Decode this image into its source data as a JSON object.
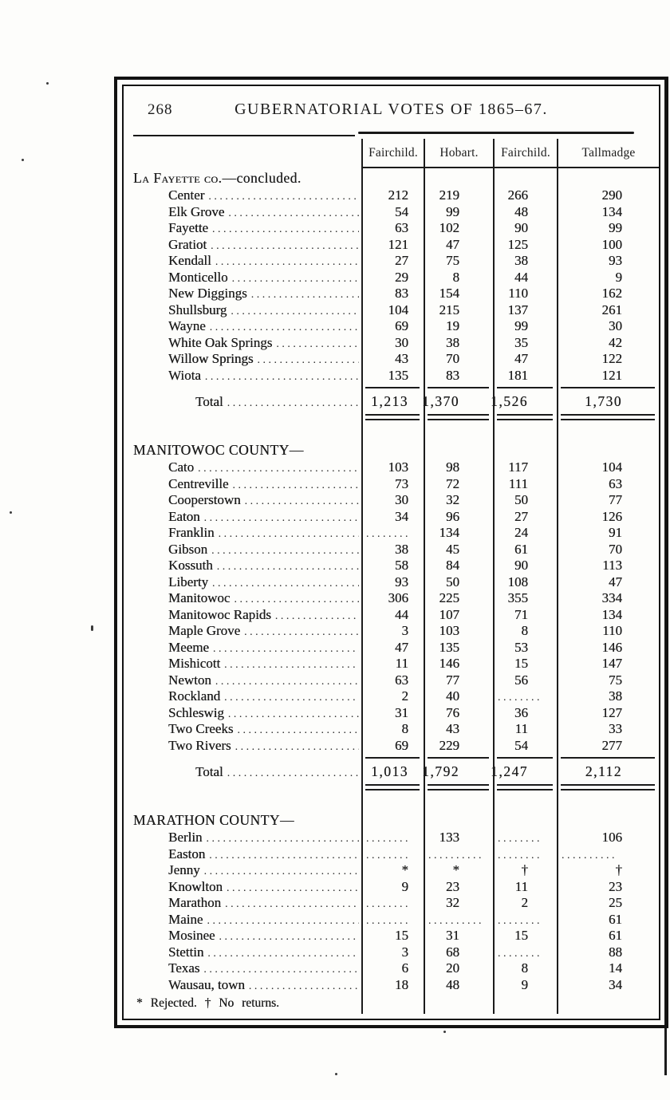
{
  "page_number": "268",
  "title": "GUBERNATORIAL VOTES OF 1865–67.",
  "columns": [
    "Fairchild.",
    "Hobart.",
    "Fairchild.",
    "Tallmadge"
  ],
  "sections": [
    {
      "heading": "La Fayette co.",
      "heading_suffix": "—concluded.",
      "rows": [
        {
          "label": "Center",
          "values": [
            "212",
            "219",
            "266",
            "290"
          ]
        },
        {
          "label": "Elk Grove",
          "values": [
            "54",
            "99",
            "48",
            "134"
          ]
        },
        {
          "label": "Fayette",
          "values": [
            "63",
            "102",
            "90",
            "99"
          ]
        },
        {
          "label": "Gratiot",
          "values": [
            "121",
            "47",
            "125",
            "100"
          ]
        },
        {
          "label": "Kendall",
          "values": [
            "27",
            "75",
            "38",
            "93"
          ]
        },
        {
          "label": "Monticello",
          "values": [
            "29",
            "8",
            "44",
            "9"
          ]
        },
        {
          "label": "New Diggings",
          "values": [
            "83",
            "154",
            "110",
            "162"
          ]
        },
        {
          "label": "Shullsburg",
          "values": [
            "104",
            "215",
            "137",
            "261"
          ]
        },
        {
          "label": "Wayne",
          "values": [
            "69",
            "19",
            "99",
            "30"
          ]
        },
        {
          "label": "White Oak Springs",
          "values": [
            "30",
            "38",
            "35",
            "42"
          ]
        },
        {
          "label": "Willow Springs",
          "values": [
            "43",
            "70",
            "47",
            "122"
          ]
        },
        {
          "label": "Wiota",
          "values": [
            "135",
            "83",
            "181",
            "121"
          ]
        }
      ],
      "total": {
        "label": "Total",
        "values": [
          "1,213",
          "1,370",
          "1,526",
          "1,730"
        ]
      }
    },
    {
      "heading": "MANITOWOC COUNTY—",
      "heading_suffix": "",
      "rows": [
        {
          "label": "Cato",
          "values": [
            "103",
            "98",
            "117",
            "104"
          ]
        },
        {
          "label": "Centreville",
          "values": [
            "73",
            "72",
            "111",
            "63"
          ]
        },
        {
          "label": "Cooperstown",
          "values": [
            "30",
            "32",
            "50",
            "77"
          ]
        },
        {
          "label": "Eaton",
          "values": [
            "34",
            "96",
            "27",
            "126"
          ]
        },
        {
          "label": "Franklin",
          "values": [
            "........",
            "134",
            "24",
            "91"
          ]
        },
        {
          "label": "Gibson",
          "values": [
            "38",
            "45",
            "61",
            "70"
          ]
        },
        {
          "label": "Kossuth",
          "values": [
            "58",
            "84",
            "90",
            "113"
          ]
        },
        {
          "label": "Liberty",
          "values": [
            "93",
            "50",
            "108",
            "47"
          ]
        },
        {
          "label": "Manitowoc",
          "values": [
            "306",
            "225",
            "355",
            "334"
          ]
        },
        {
          "label": "Manitowoc Rapids",
          "values": [
            "44",
            "107",
            "71",
            "134"
          ]
        },
        {
          "label": "Maple Grove",
          "values": [
            "3",
            "103",
            "8",
            "110"
          ]
        },
        {
          "label": "Meeme",
          "values": [
            "47",
            "135",
            "53",
            "146"
          ]
        },
        {
          "label": "Mishicott",
          "values": [
            "11",
            "146",
            "15",
            "147"
          ]
        },
        {
          "label": "Newton",
          "values": [
            "63",
            "77",
            "56",
            "75"
          ]
        },
        {
          "label": "Rockland",
          "values": [
            "2",
            "40",
            "........",
            "38"
          ]
        },
        {
          "label": "Schleswig",
          "values": [
            "31",
            "76",
            "36",
            "127"
          ]
        },
        {
          "label": "Two Creeks",
          "values": [
            "8",
            "43",
            "11",
            "33"
          ]
        },
        {
          "label": "Two Rivers",
          "values": [
            "69",
            "229",
            "54",
            "277"
          ]
        }
      ],
      "total": {
        "label": "Total",
        "values": [
          "1,013",
          "1,792",
          "1,247",
          "2,112"
        ]
      }
    },
    {
      "heading": "MARATHON COUNTY—",
      "heading_suffix": "",
      "rows": [
        {
          "label": "Berlin",
          "values": [
            "........",
            "133",
            "........",
            "106"
          ]
        },
        {
          "label": "Easton",
          "values": [
            "........",
            "..........",
            "........",
            ".........."
          ]
        },
        {
          "label": "Jenny",
          "values": [
            "*",
            "*",
            "†",
            "†"
          ]
        },
        {
          "label": "Knowlton",
          "values": [
            "9",
            "23",
            "11",
            "23"
          ]
        },
        {
          "label": "Marathon",
          "values": [
            "........",
            "32",
            "2",
            "25"
          ]
        },
        {
          "label": "Maine",
          "values": [
            "........",
            "..........",
            "........",
            "61"
          ]
        },
        {
          "label": "Mosinee",
          "values": [
            "15",
            "31",
            "15",
            "61"
          ]
        },
        {
          "label": "Stettin",
          "values": [
            "3",
            "68",
            "........",
            "88"
          ]
        },
        {
          "label": "Texas",
          "values": [
            "6",
            "20",
            "8",
            "14"
          ]
        },
        {
          "label": "Wausau, town",
          "values": [
            "18",
            "48",
            "9",
            "34"
          ]
        }
      ],
      "total": null
    }
  ],
  "footnote": "* Rejected.  † No returns.",
  "ink_color": "#1c1c1c",
  "paper_color": "#fdfdfb"
}
